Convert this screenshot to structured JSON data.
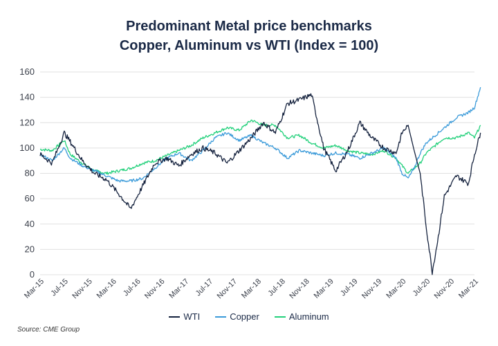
{
  "chart_data": {
    "type": "line",
    "title": "Predominant Metal price benchmarks",
    "subtitle": "Copper, Aluminum vs WTI (Index = 100)",
    "xlabel": "",
    "ylabel": "",
    "ylim": [
      0,
      160
    ],
    "yticks": [
      0,
      20,
      40,
      60,
      80,
      100,
      120,
      140,
      160
    ],
    "grid": true,
    "legend_position": "bottom-center",
    "x_tick_labels": [
      "Mar-15",
      "Jul-15",
      "Nov-15",
      "Mar-16",
      "Jul-16",
      "Nov-16",
      "Mar-17",
      "Jul-17",
      "Nov-17",
      "Mar-18",
      "Jul-18",
      "Nov-18",
      "Mar-19",
      "Jul-19",
      "Nov-19",
      "Mar-20",
      "Jul-20",
      "Nov-20",
      "Mar-21"
    ],
    "x_months_from_mar15": [
      0,
      2,
      4,
      5,
      7,
      9,
      11,
      13,
      15,
      17,
      19,
      21,
      23,
      25,
      27,
      29,
      31,
      33,
      35,
      37,
      39,
      41,
      43,
      45,
      47,
      49,
      51,
      53,
      55,
      57,
      59,
      60,
      61,
      62,
      63,
      64,
      65,
      66,
      67,
      69,
      71,
      72,
      73
    ],
    "series": [
      {
        "name": "WTI",
        "color": "#14213d",
        "values": [
          95,
          88,
          112,
          105,
          90,
          80,
          75,
          64,
          52,
          70,
          88,
          92,
          86,
          95,
          100,
          96,
          88,
          98,
          108,
          120,
          112,
          135,
          138,
          142,
          100,
          82,
          98,
          120,
          108,
          100,
          96,
          112,
          118,
          98,
          80,
          38,
          2,
          30,
          62,
          78,
          72,
          95,
          112
        ]
      },
      {
        "name": "Copper",
        "color": "#3a9ad9",
        "values": [
          95,
          90,
          100,
          92,
          86,
          82,
          78,
          74,
          74,
          76,
          84,
          92,
          96,
          90,
          98,
          108,
          112,
          106,
          110,
          104,
          100,
          92,
          98,
          96,
          94,
          96,
          95,
          92,
          96,
          100,
          92,
          80,
          76,
          84,
          96,
          104,
          108,
          112,
          116,
          124,
          128,
          132,
          148
        ]
      },
      {
        "name": "Aluminum",
        "color": "#21d07a",
        "values": [
          99,
          98,
          106,
          95,
          88,
          82,
          80,
          82,
          84,
          88,
          90,
          94,
          98,
          102,
          108,
          112,
          116,
          114,
          122,
          118,
          118,
          108,
          110,
          104,
          100,
          102,
          98,
          96,
          95,
          98,
          92,
          86,
          80,
          84,
          88,
          96,
          100,
          104,
          108,
          108,
          112,
          108,
          118
        ]
      }
    ]
  },
  "legend": {
    "items": [
      "WTI",
      "Copper",
      "Aluminum"
    ]
  },
  "source": "Source: CME Group"
}
